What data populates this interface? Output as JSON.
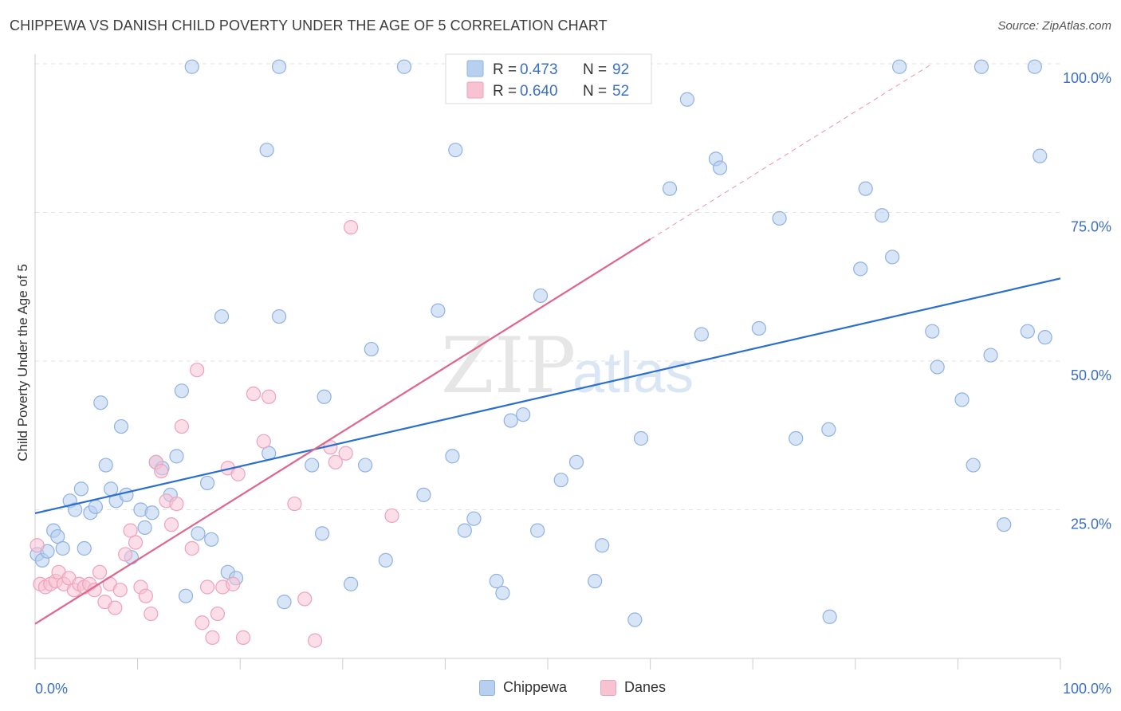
{
  "title": "CHIPPEWA VS DANISH CHILD POVERTY UNDER THE AGE OF 5 CORRELATION CHART",
  "source": "Source: ZipAtlas.com",
  "watermark": {
    "zip": "ZIP",
    "atlas": "atlas"
  },
  "legend_top": {
    "rows": [
      {
        "r_label": "R =",
        "r_value": "0.473",
        "n_label": "N =",
        "n_value": "92"
      },
      {
        "r_label": "R =",
        "r_value": "0.640",
        "n_label": "N =",
        "n_value": "52"
      }
    ]
  },
  "legend_bottom": [
    "Chippewa",
    "Danes"
  ],
  "colors": {
    "chippewa_fill": "#b8d0f0",
    "chippewa_stroke": "#8fb2e3",
    "chippewa_line": "#2a6fcf",
    "danes_fill": "#f7c3d3",
    "danes_stroke": "#eea2bb",
    "danes_line": "#e0658c",
    "value_text": "#3a6fc4",
    "grid": "#e2e2e2"
  },
  "chart_data": {
    "type": "scatter",
    "title": "CHIPPEWA VS DANISH CHILD POVERTY UNDER THE AGE OF 5 CORRELATION CHART",
    "xlabel": "",
    "ylabel": "Child Poverty Under the Age of 5",
    "xlim": [
      0,
      100
    ],
    "ylim": [
      0,
      100
    ],
    "x_tick_labels": [
      "0.0%",
      "100.0%"
    ],
    "y_tick_values": [
      25,
      50,
      75,
      100
    ],
    "y_tick_labels": [
      "25.0%",
      "50.0%",
      "75.0%",
      "100.0%"
    ],
    "grid": true,
    "legend_position": "bottom",
    "series": [
      {
        "name": "Chippewa",
        "R": 0.473,
        "N": 92,
        "trend": {
          "x": [
            0,
            100
          ],
          "y": [
            24.4,
            63.9
          ]
        },
        "points": [
          [
            0.2,
            17.5
          ],
          [
            0.7,
            16.5
          ],
          [
            1.2,
            18.0
          ],
          [
            1.8,
            21.5
          ],
          [
            2.2,
            20.5
          ],
          [
            2.7,
            18.5
          ],
          [
            3.4,
            26.5
          ],
          [
            3.9,
            25.0
          ],
          [
            4.5,
            28.5
          ],
          [
            4.8,
            18.5
          ],
          [
            5.4,
            24.5
          ],
          [
            5.9,
            25.5
          ],
          [
            6.4,
            43.0
          ],
          [
            6.9,
            32.5
          ],
          [
            7.4,
            28.5
          ],
          [
            7.9,
            26.5
          ],
          [
            8.4,
            39.0
          ],
          [
            8.9,
            27.5
          ],
          [
            9.4,
            17.0
          ],
          [
            10.3,
            25.0
          ],
          [
            10.7,
            22.0
          ],
          [
            11.4,
            24.5
          ],
          [
            11.8,
            33.0
          ],
          [
            12.4,
            32.0
          ],
          [
            13.2,
            27.5
          ],
          [
            13.8,
            34.0
          ],
          [
            14.3,
            45.0
          ],
          [
            14.7,
            10.5
          ],
          [
            15.3,
            99.5
          ],
          [
            15.9,
            21.0
          ],
          [
            16.8,
            29.5
          ],
          [
            17.2,
            20.0
          ],
          [
            18.2,
            57.5
          ],
          [
            18.8,
            14.5
          ],
          [
            19.6,
            13.5
          ],
          [
            22.6,
            85.5
          ],
          [
            22.8,
            34.5
          ],
          [
            23.8,
            99.5
          ],
          [
            23.8,
            57.5
          ],
          [
            24.3,
            9.5
          ],
          [
            27.0,
            32.5
          ],
          [
            28.0,
            21.0
          ],
          [
            28.2,
            44.0
          ],
          [
            30.8,
            12.5
          ],
          [
            32.2,
            32.5
          ],
          [
            32.8,
            52.0
          ],
          [
            34.2,
            16.5
          ],
          [
            36.0,
            99.5
          ],
          [
            37.9,
            27.5
          ],
          [
            39.3,
            58.5
          ],
          [
            40.7,
            34.0
          ],
          [
            41.0,
            85.5
          ],
          [
            41.9,
            21.5
          ],
          [
            42.8,
            23.5
          ],
          [
            45.0,
            13.0
          ],
          [
            45.6,
            11.0
          ],
          [
            47.6,
            41.0
          ],
          [
            46.4,
            40.0
          ],
          [
            49.0,
            21.5
          ],
          [
            49.3,
            61.0
          ],
          [
            51.3,
            30.0
          ],
          [
            52.8,
            33.0
          ],
          [
            54.6,
            13.0
          ],
          [
            55.3,
            19.0
          ],
          [
            58.5,
            6.5
          ],
          [
            59.1,
            37.0
          ],
          [
            61.9,
            79.0
          ],
          [
            63.6,
            94.0
          ],
          [
            65.0,
            54.5
          ],
          [
            66.4,
            84.0
          ],
          [
            66.8,
            82.5
          ],
          [
            70.6,
            55.5
          ],
          [
            72.6,
            74.0
          ],
          [
            74.2,
            37.0
          ],
          [
            77.4,
            38.5
          ],
          [
            77.5,
            7.0
          ],
          [
            80.5,
            65.5
          ],
          [
            81.0,
            79.0
          ],
          [
            82.6,
            74.5
          ],
          [
            84.3,
            99.5
          ],
          [
            83.6,
            67.5
          ],
          [
            88.0,
            49.0
          ],
          [
            87.5,
            55.0
          ],
          [
            90.4,
            43.5
          ],
          [
            91.5,
            32.5
          ],
          [
            92.3,
            99.5
          ],
          [
            93.2,
            51.0
          ],
          [
            94.5,
            22.5
          ],
          [
            96.8,
            55.0
          ],
          [
            97.5,
            99.5
          ],
          [
            98.0,
            84.5
          ],
          [
            98.5,
            54.0
          ]
        ]
      },
      {
        "name": "Danes",
        "R": 0.64,
        "N": 52,
        "trend": {
          "x": [
            0,
            60
          ],
          "y": [
            5.8,
            70.5
          ]
        },
        "trend_extension": {
          "x": [
            60,
            87.5
          ],
          "y": [
            70.5,
            100
          ]
        },
        "points": [
          [
            0.2,
            19.0
          ],
          [
            0.5,
            12.5
          ],
          [
            1.0,
            12.0
          ],
          [
            1.5,
            12.5
          ],
          [
            2.0,
            13.0
          ],
          [
            2.3,
            14.5
          ],
          [
            2.8,
            12.5
          ],
          [
            3.3,
            13.5
          ],
          [
            3.8,
            11.5
          ],
          [
            4.3,
            12.5
          ],
          [
            4.8,
            12.0
          ],
          [
            5.3,
            12.5
          ],
          [
            5.8,
            11.5
          ],
          [
            6.3,
            14.5
          ],
          [
            6.8,
            9.5
          ],
          [
            7.3,
            12.5
          ],
          [
            7.8,
            8.5
          ],
          [
            8.3,
            11.5
          ],
          [
            8.8,
            17.5
          ],
          [
            9.3,
            21.5
          ],
          [
            9.8,
            19.5
          ],
          [
            10.3,
            12.0
          ],
          [
            10.8,
            10.5
          ],
          [
            11.3,
            7.5
          ],
          [
            11.8,
            33.0
          ],
          [
            12.3,
            31.5
          ],
          [
            12.8,
            26.5
          ],
          [
            13.3,
            22.5
          ],
          [
            13.8,
            26.0
          ],
          [
            14.3,
            39.0
          ],
          [
            15.3,
            18.5
          ],
          [
            15.8,
            48.5
          ],
          [
            16.3,
            6.0
          ],
          [
            16.8,
            12.0
          ],
          [
            17.3,
            3.5
          ],
          [
            17.8,
            7.5
          ],
          [
            18.3,
            12.0
          ],
          [
            18.8,
            32.0
          ],
          [
            19.3,
            12.5
          ],
          [
            19.8,
            31.0
          ],
          [
            20.3,
            3.5
          ],
          [
            21.3,
            44.5
          ],
          [
            22.3,
            36.5
          ],
          [
            22.8,
            44.0
          ],
          [
            25.3,
            26.0
          ],
          [
            26.3,
            10.0
          ],
          [
            27.3,
            3.0
          ],
          [
            28.8,
            35.5
          ],
          [
            29.3,
            33.0
          ],
          [
            30.3,
            34.5
          ],
          [
            30.8,
            72.5
          ],
          [
            34.8,
            24.0
          ]
        ]
      }
    ]
  }
}
